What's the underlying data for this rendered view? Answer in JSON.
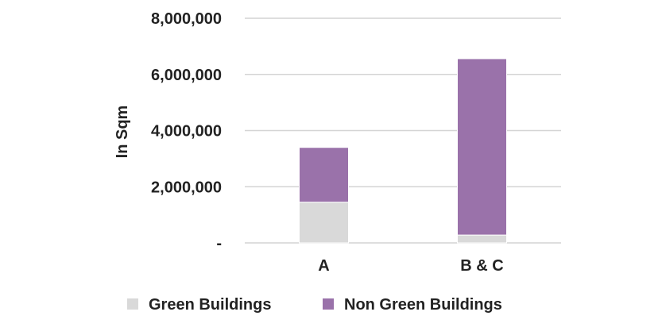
{
  "chart_data": {
    "type": "bar",
    "stacked": true,
    "categories": [
      "A",
      "B & C"
    ],
    "series": [
      {
        "name": "Green Buildings",
        "values": [
          1450000,
          280000
        ],
        "color": "#d9d9d9"
      },
      {
        "name": "Non Green Buildings",
        "values": [
          1950000,
          6280000
        ],
        "color": "#9a72aa"
      }
    ],
    "ylabel": "In Sqm",
    "ylim": [
      0,
      8000000
    ],
    "yticks": [
      {
        "value": 0,
        "label": "-"
      },
      {
        "value": 2000000,
        "label": "2,000,000"
      },
      {
        "value": 4000000,
        "label": "4,000,000"
      },
      {
        "value": 6000000,
        "label": "6,000,000"
      },
      {
        "value": 8000000,
        "label": "8,000,000"
      }
    ],
    "grid": true,
    "legend_position": "bottom"
  }
}
